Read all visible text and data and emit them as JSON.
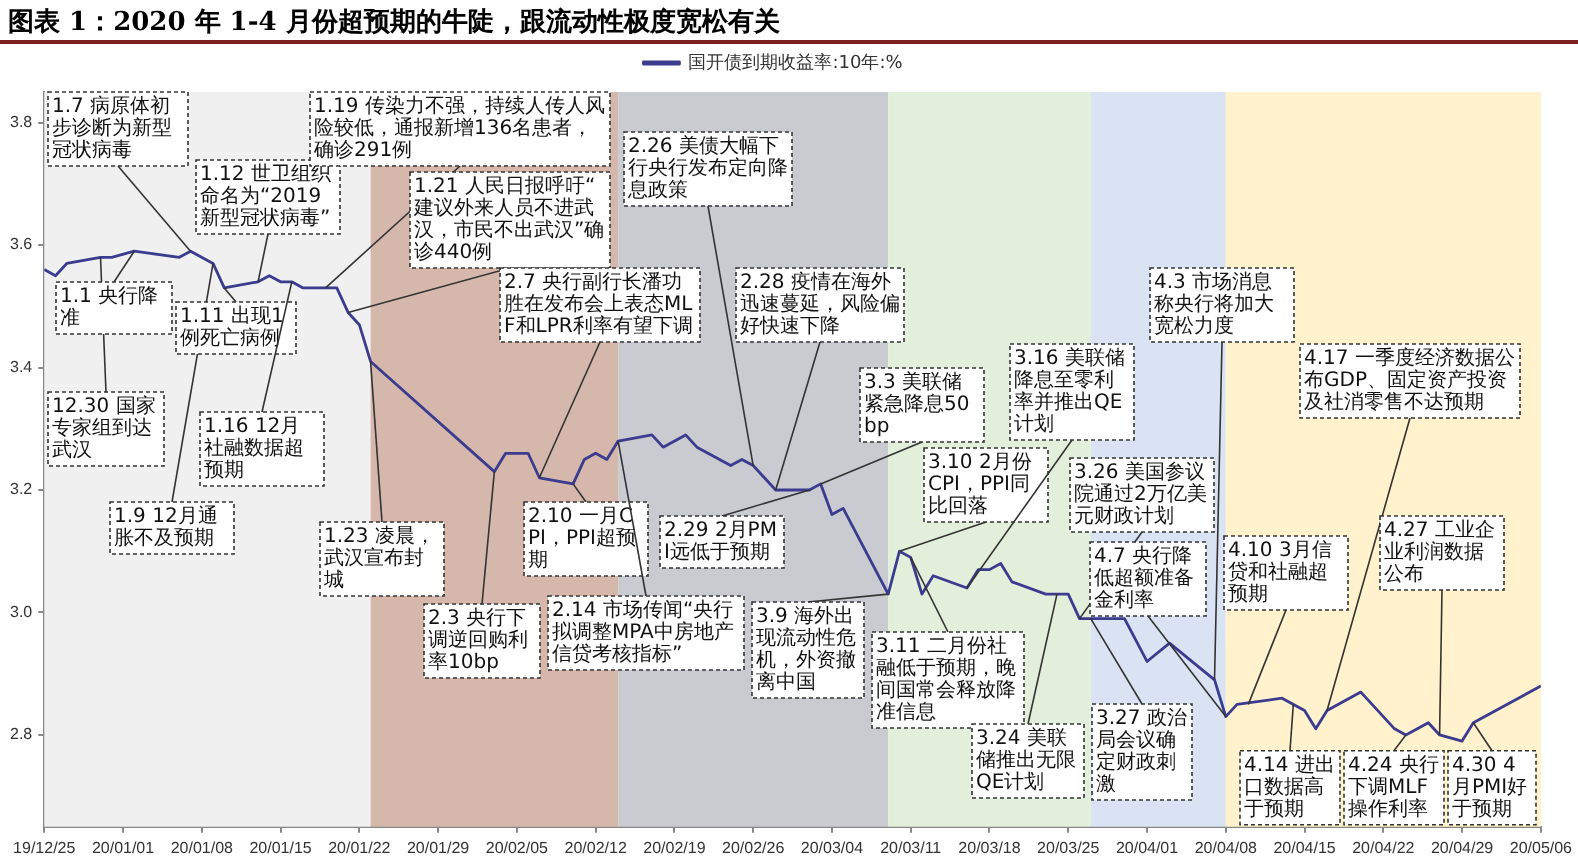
{
  "chart_data": {
    "type": "line",
    "title": "图表 1：2020 年 1-4 月份超预期的牛陡，跟流动性极度宽松有关",
    "x": [
      "2019-12-25",
      "2019-12-26",
      "2019-12-27",
      "2019-12-30",
      "2019-12-31",
      "2020-01-02",
      "2020-01-06",
      "2020-01-07",
      "2020-01-09",
      "2020-01-10",
      "2020-01-13",
      "2020-01-14",
      "2020-01-15",
      "2020-01-16",
      "2020-01-17",
      "2020-01-20",
      "2020-01-21",
      "2020-01-22",
      "2020-01-23",
      "2020-02-03",
      "2020-02-04",
      "2020-02-06",
      "2020-02-07",
      "2020-02-10",
      "2020-02-11",
      "2020-02-12",
      "2020-02-13",
      "2020-02-14",
      "2020-02-17",
      "2020-02-18",
      "2020-02-20",
      "2020-02-21",
      "2020-02-24",
      "2020-02-25",
      "2020-02-26",
      "2020-02-28",
      "2020-03-02",
      "2020-03-03",
      "2020-03-04",
      "2020-03-05",
      "2020-03-09",
      "2020-03-10",
      "2020-03-11",
      "2020-03-12",
      "2020-03-13",
      "2020-03-16",
      "2020-03-17",
      "2020-03-18",
      "2020-03-19",
      "2020-03-20",
      "2020-03-23",
      "2020-03-24",
      "2020-03-25",
      "2020-03-26",
      "2020-03-30",
      "2020-04-01",
      "2020-04-03",
      "2020-04-07",
      "2020-04-08",
      "2020-04-09",
      "2020-04-13",
      "2020-04-15",
      "2020-04-16",
      "2020-04-17",
      "2020-04-20",
      "2020-04-23",
      "2020-04-24",
      "2020-04-26",
      "2020-04-27",
      "2020-04-29",
      "2020-04-30",
      "2020-05-06"
    ],
    "series": [
      {
        "name": "国开债到期收益率:10年:%",
        "color": "#3b3b8f",
        "values": [
          3.56,
          3.55,
          3.57,
          3.58,
          3.58,
          3.59,
          3.58,
          3.59,
          3.57,
          3.53,
          3.54,
          3.55,
          3.54,
          3.54,
          3.53,
          3.53,
          3.49,
          3.47,
          3.41,
          3.23,
          3.26,
          3.26,
          3.22,
          3.21,
          3.25,
          3.26,
          3.25,
          3.28,
          3.29,
          3.27,
          3.29,
          3.27,
          3.24,
          3.25,
          3.24,
          3.2,
          3.2,
          3.21,
          3.16,
          3.17,
          3.03,
          3.1,
          3.09,
          3.03,
          3.06,
          3.04,
          3.07,
          3.07,
          3.08,
          3.05,
          3.03,
          3.03,
          3.03,
          2.99,
          2.99,
          2.92,
          2.95,
          2.89,
          2.83,
          2.85,
          2.86,
          2.84,
          2.81,
          2.84,
          2.87,
          2.81,
          2.8,
          2.82,
          2.8,
          2.79,
          2.82,
          2.88
        ]
      }
    ],
    "xlim": [
      "2019-12-25",
      "2020-05-06"
    ],
    "xticks": [
      {
        "value": "2019-12-25",
        "label": "19/12/25"
      },
      {
        "value": "2020-01-01",
        "label": "20/01/01"
      },
      {
        "value": "2020-01-08",
        "label": "20/01/08"
      },
      {
        "value": "2020-01-15",
        "label": "20/01/15"
      },
      {
        "value": "2020-01-22",
        "label": "20/01/22"
      },
      {
        "value": "2020-01-29",
        "label": "20/01/29"
      },
      {
        "value": "2020-02-05",
        "label": "20/02/05"
      },
      {
        "value": "2020-02-12",
        "label": "20/02/12"
      },
      {
        "value": "2020-02-19",
        "label": "20/02/19"
      },
      {
        "value": "2020-02-26",
        "label": "20/02/26"
      },
      {
        "value": "2020-03-04",
        "label": "20/03/04"
      },
      {
        "value": "2020-03-11",
        "label": "20/03/11"
      },
      {
        "value": "2020-03-18",
        "label": "20/03/18"
      },
      {
        "value": "2020-03-25",
        "label": "20/03/25"
      },
      {
        "value": "2020-04-01",
        "label": "20/04/01"
      },
      {
        "value": "2020-04-08",
        "label": "20/04/08"
      },
      {
        "value": "2020-04-15",
        "label": "20/04/15"
      },
      {
        "value": "2020-04-22",
        "label": "20/04/22"
      },
      {
        "value": "2020-04-29",
        "label": "20/04/29"
      },
      {
        "value": "2020-05-06",
        "label": "20/05/06"
      }
    ],
    "ylim": [
      2.65,
      3.85
    ],
    "yticks": [
      2.8,
      {
        "value": 3,
        "label": "3.0"
      },
      3.2,
      3.4,
      3.6,
      3.8
    ],
    "grid": false,
    "legend": "top",
    "marker": "none",
    "line_style": "solid",
    "bands": [
      {
        "axis": "x",
        "from": "2019-12-25",
        "to": "2020-01-23",
        "color": "#f0f0f0"
      },
      {
        "axis": "x",
        "from": "2020-01-23",
        "to": "2020-02-14",
        "color": "#d5b8ab"
      },
      {
        "axis": "x",
        "from": "2020-02-14",
        "to": "2020-03-09",
        "color": "#c9cbd1"
      },
      {
        "axis": "x",
        "from": "2020-03-09",
        "to": "2020-03-27",
        "color": "#e2efda"
      },
      {
        "axis": "x",
        "from": "2020-03-27",
        "to": "2020-04-08",
        "color": "#dae3f3"
      },
      {
        "axis": "x",
        "from": "2020-04-08",
        "to": "2020-05-06",
        "color": "#fff2cc"
      }
    ],
    "annotations": [
      {
        "text": "12.30 国家专家组到达武汉",
        "x": "2019-12-30",
        "y": 3.58
      },
      {
        "text": "1.1 央行降准",
        "x": "2020-01-02",
        "y": 3.59
      },
      {
        "text": "1.7 病原体初步诊断为新型冠状病毒",
        "x": "2020-01-07",
        "y": 3.59
      },
      {
        "text": "1.9 12月通胀不及预期",
        "x": "2020-01-09",
        "y": 3.57
      },
      {
        "text": "1.11 出现1例死亡病例",
        "x": "2020-01-10",
        "y": 3.53
      },
      {
        "text": "1.12 世卫组织命名为“2019新型冠状病毒”",
        "x": "2020-01-13",
        "y": 3.54
      },
      {
        "text": "1.16 12月社融数据超预期",
        "x": "2020-01-16",
        "y": 3.54
      },
      {
        "text": "1.19 传染力不强，持续人传人风险较低，通报新增136名患者，确诊291例",
        "x": "2020-01-19",
        "y": 3.53
      },
      {
        "text": "1.21 人民日报呼吁“建议外来人员不进武汉，市民不出武汉”确诊440例",
        "x": "2020-01-21",
        "y": 3.49
      },
      {
        "text": "1.23 凌晨，武汉宣布封城",
        "x": "2020-01-23",
        "y": 3.41
      },
      {
        "text": "2.3 央行下调逆回购利率10bp",
        "x": "2020-02-03",
        "y": 3.23
      },
      {
        "text": "2.7 央行副行长潘功胜在发布会上表态MLF和LPR利率有望下调",
        "x": "2020-02-07",
        "y": 3.22
      },
      {
        "text": "2.10 一月CPI，PPI超预期",
        "x": "2020-02-10",
        "y": 3.21
      },
      {
        "text": "2.14 市场传闻“央行拟调整MPA中房地产信贷考核指标”",
        "x": "2020-02-14",
        "y": 3.28
      },
      {
        "text": "2.26 美债大幅下行央行发布定向降息政策",
        "x": "2020-02-26",
        "y": 3.24
      },
      {
        "text": "2.28 疫情在海外迅速蔓延，风险偏好快速下降",
        "x": "2020-02-28",
        "y": 3.2
      },
      {
        "text": "2.29 2月PMI远低于预期",
        "x": "2020-03-02",
        "y": 3.2
      },
      {
        "text": "3.3 美联储紧急降息50bp",
        "x": "2020-03-03",
        "y": 3.21
      },
      {
        "text": "3.9 海外出现流动性危机，外资撤离中国",
        "x": "2020-03-09",
        "y": 3.03
      },
      {
        "text": "3.10 2月份CPI，PPI同比回落",
        "x": "2020-03-10",
        "y": 3.1
      },
      {
        "text": "3.11 二月份社融低于预期，晚间国常会释放降准信息",
        "x": "2020-03-11",
        "y": 3.09
      },
      {
        "text": "3.16 美联储降息至零利率并推出QE计划",
        "x": "2020-03-16",
        "y": 3.04
      },
      {
        "text": "3.24 美联储推出无限QE计划",
        "x": "2020-03-24",
        "y": 3.03
      },
      {
        "text": "3.26 美国参议院通过2万亿美元财政计划",
        "x": "2020-03-26",
        "y": 2.99
      },
      {
        "text": "3.27 政治局会议确定财政刺激",
        "x": "2020-03-27",
        "y": 2.99
      },
      {
        "text": "4.3 市场消息称央行将加大宽松力度",
        "x": "2020-04-07",
        "y": 2.89
      },
      {
        "text": "4.7 央行降低超额准备金利率",
        "x": "2020-04-08",
        "y": 2.83
      },
      {
        "text": "4.10 3月信贷和社融超预期",
        "x": "2020-04-10",
        "y": 2.85
      },
      {
        "text": "4.14 进出口数据高于预期",
        "x": "2020-04-14",
        "y": 2.85
      },
      {
        "text": "4.17 一季度经济数据公布GDP、固定资产投资及社消零售不达预期",
        "x": "2020-04-17",
        "y": 2.84
      },
      {
        "text": "4.24 央行下调MLF操作利率",
        "x": "2020-04-24",
        "y": 2.8
      },
      {
        "text": "4.27 工业企业利润数据公布",
        "x": "2020-04-27",
        "y": 2.8
      },
      {
        "text": "4.30 4月PMI好于预期",
        "x": "2020-04-30",
        "y": 2.82
      }
    ]
  }
}
